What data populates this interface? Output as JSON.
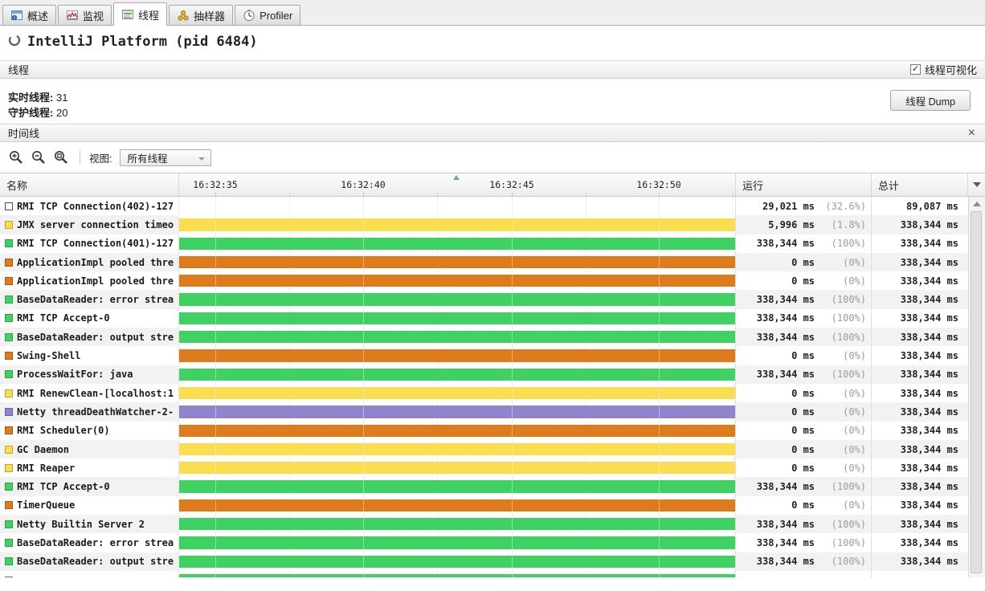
{
  "tabs": [
    {
      "label": "概述"
    },
    {
      "label": "监视"
    },
    {
      "label": "线程",
      "selected": true
    },
    {
      "label": "抽样器"
    },
    {
      "label": "Profiler"
    }
  ],
  "header": {
    "title": "IntelliJ Platform",
    "pid": "(pid 6484)"
  },
  "threads_section": {
    "title": "线程",
    "visualization_label": "线程可视化",
    "visualization_checked": true,
    "live_label": "实时线程:",
    "live_value": "31",
    "daemon_label": "守护线程:",
    "daemon_value": "20",
    "dump_button_label": "线程 Dump"
  },
  "timeline_section": {
    "title": "时间线",
    "view_label": "视图:",
    "view_value": "所有线程"
  },
  "table": {
    "name_column": "名称",
    "running_column": "运行",
    "total_column": "总计",
    "time_ticks": [
      "16:32:35",
      "16:32:40",
      "16:32:45",
      "16:32:50"
    ],
    "rows": [
      {
        "name": "RMI TCP Connection(402)-127",
        "color": "none",
        "run": "29,021 ms",
        "pct": "(32.6%)",
        "total": "89,087 ms"
      },
      {
        "name": "JMX server connection timeo",
        "color": "yellow",
        "run": "5,996 ms",
        "pct": "(1.8%)",
        "total": "338,344 ms"
      },
      {
        "name": "RMI TCP Connection(401)-127",
        "color": "green",
        "run": "338,344 ms",
        "pct": "(100%)",
        "total": "338,344 ms"
      },
      {
        "name": "ApplicationImpl pooled thre",
        "color": "orange",
        "run": "0 ms",
        "pct": "(0%)",
        "total": "338,344 ms"
      },
      {
        "name": "ApplicationImpl pooled thre",
        "color": "orange",
        "run": "0 ms",
        "pct": "(0%)",
        "total": "338,344 ms"
      },
      {
        "name": "BaseDataReader: error strea",
        "color": "green",
        "run": "338,344 ms",
        "pct": "(100%)",
        "total": "338,344 ms"
      },
      {
        "name": "RMI TCP Accept-0",
        "color": "green",
        "run": "338,344 ms",
        "pct": "(100%)",
        "total": "338,344 ms"
      },
      {
        "name": "BaseDataReader: output stre",
        "color": "green",
        "run": "338,344 ms",
        "pct": "(100%)",
        "total": "338,344 ms"
      },
      {
        "name": "Swing-Shell",
        "color": "orange",
        "run": "0 ms",
        "pct": "(0%)",
        "total": "338,344 ms"
      },
      {
        "name": "ProcessWaitFor: java",
        "color": "green",
        "run": "338,344 ms",
        "pct": "(100%)",
        "total": "338,344 ms"
      },
      {
        "name": "RMI RenewClean-[localhost:1",
        "color": "yellow",
        "run": "0 ms",
        "pct": "(0%)",
        "total": "338,344 ms"
      },
      {
        "name": "Netty threadDeathWatcher-2-",
        "color": "purple",
        "run": "0 ms",
        "pct": "(0%)",
        "total": "338,344 ms"
      },
      {
        "name": "RMI Scheduler(0)",
        "color": "orange",
        "run": "0 ms",
        "pct": "(0%)",
        "total": "338,344 ms"
      },
      {
        "name": "GC Daemon",
        "color": "yellow",
        "run": "0 ms",
        "pct": "(0%)",
        "total": "338,344 ms"
      },
      {
        "name": "RMI Reaper",
        "color": "yellow",
        "run": "0 ms",
        "pct": "(0%)",
        "total": "338,344 ms"
      },
      {
        "name": "RMI TCP Accept-0",
        "color": "green",
        "run": "338,344 ms",
        "pct": "(100%)",
        "total": "338,344 ms"
      },
      {
        "name": "TimerQueue",
        "color": "orange",
        "run": "0 ms",
        "pct": "(0%)",
        "total": "338,344 ms"
      },
      {
        "name": "Netty Builtin Server 2",
        "color": "green",
        "run": "338,344 ms",
        "pct": "(100%)",
        "total": "338,344 ms"
      },
      {
        "name": "BaseDataReader: error strea",
        "color": "green",
        "run": "338,344 ms",
        "pct": "(100%)",
        "total": "338,344 ms"
      },
      {
        "name": "BaseDataReader: output stre",
        "color": "green",
        "run": "338,344 ms",
        "pct": "(100%)",
        "total": "338,344 ms"
      },
      {
        "name": "",
        "color": "green",
        "run": "",
        "pct": "",
        "total": ""
      }
    ]
  },
  "colors": {
    "green": {
      "fill": "#3FD161",
      "border": "#2BA348"
    },
    "yellow": {
      "fill": "#FBDD52",
      "border": "#C3A32B"
    },
    "orange": {
      "fill": "#DE7B1B",
      "border": "#A55A10"
    },
    "purple": {
      "fill": "#9184CF",
      "border": "#6A5CA8"
    },
    "none": {
      "fill": "#FFFFFF",
      "border": "#4D4D4D"
    }
  },
  "icons": {
    "close": "×",
    "check": "✓"
  }
}
